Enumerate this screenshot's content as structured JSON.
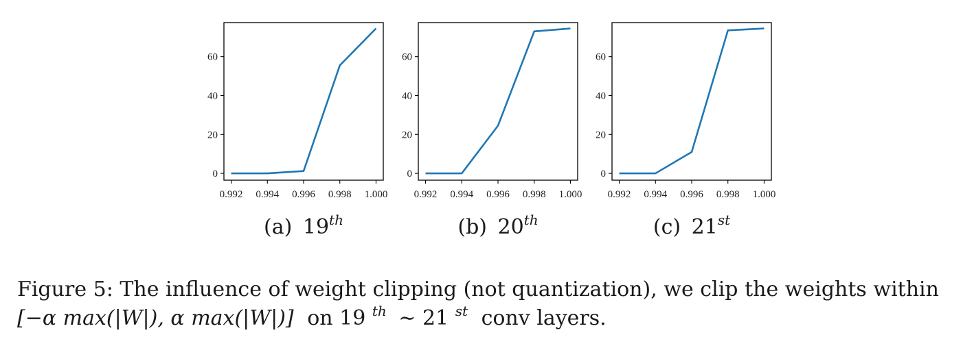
{
  "chart_data": [
    {
      "type": "line",
      "subcaption": {
        "label": "(a)",
        "layer": "19",
        "suffix": "th"
      },
      "x": [
        0.992,
        0.994,
        0.996,
        0.998,
        1.0
      ],
      "series": [
        {
          "values": [
            0,
            0,
            1.2,
            55.5,
            74.5
          ]
        }
      ],
      "xticks": [
        "0.992",
        "0.994",
        "0.996",
        "0.998",
        "1.000"
      ],
      "yticks": [
        "0",
        "20",
        "40",
        "60"
      ],
      "xlim": [
        0.9916,
        1.0004
      ],
      "ylim": [
        -3.5,
        77.5
      ],
      "grid": false,
      "color": "#1f77b4"
    },
    {
      "type": "line",
      "subcaption": {
        "label": "(b)",
        "layer": "20",
        "suffix": "th"
      },
      "x": [
        0.992,
        0.994,
        0.996,
        0.998,
        1.0
      ],
      "series": [
        {
          "values": [
            0,
            0,
            24.5,
            73,
            74.5
          ]
        }
      ],
      "xticks": [
        "0.992",
        "0.994",
        "0.996",
        "0.998",
        "1.000"
      ],
      "yticks": [
        "0",
        "20",
        "40",
        "60"
      ],
      "xlim": [
        0.9916,
        1.0004
      ],
      "ylim": [
        -3.5,
        77.5
      ],
      "grid": false,
      "color": "#1f77b4"
    },
    {
      "type": "line",
      "subcaption": {
        "label": "(c)",
        "layer": "21",
        "suffix": "st"
      },
      "x": [
        0.992,
        0.994,
        0.996,
        0.998,
        1.0
      ],
      "series": [
        {
          "values": [
            0,
            0,
            11,
            73.5,
            74.5
          ]
        }
      ],
      "xticks": [
        "0.992",
        "0.994",
        "0.996",
        "0.998",
        "1.000"
      ],
      "yticks": [
        "0",
        "20",
        "40",
        "60"
      ],
      "xlim": [
        0.9916,
        1.0004
      ],
      "ylim": [
        -3.5,
        77.5
      ],
      "grid": false,
      "color": "#1f77b4"
    }
  ],
  "caption": {
    "line1": "Figure 5: The influence of weight clipping (not quantization), we clip the weights within",
    "line2_math": "[−α max(|W|), α max(|W|)]",
    "line2_on": "on 19",
    "line2_sup1": "th",
    "line2_tilde": "∼ 21",
    "line2_sup2": "st",
    "line2_end": "conv layers."
  }
}
